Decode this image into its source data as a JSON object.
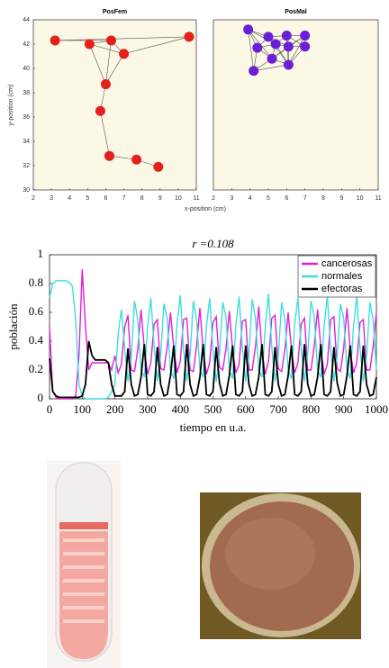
{
  "chart_data": [
    {
      "type": "scatter",
      "title": "PosFem",
      "xlabel": "x-position (cm)",
      "ylabel": "y-position (cm)",
      "color": "#e3201b",
      "x": [
        3.2,
        5.1,
        6.3,
        7.0,
        10.6,
        6.0,
        5.7,
        6.2,
        7.7,
        8.9
      ],
      "y": [
        42.3,
        42.0,
        42.3,
        41.2,
        42.6,
        38.7,
        36.5,
        32.8,
        32.5,
        31.9
      ],
      "edges": [
        [
          0,
          2
        ],
        [
          0,
          4
        ],
        [
          1,
          2
        ],
        [
          1,
          3
        ],
        [
          2,
          3
        ],
        [
          3,
          4
        ],
        [
          2,
          5
        ],
        [
          1,
          5
        ],
        [
          3,
          5
        ],
        [
          5,
          6
        ],
        [
          6,
          7
        ],
        [
          7,
          8
        ],
        [
          8,
          9
        ]
      ],
      "xlim": [
        2,
        11
      ],
      "xticks": [
        2,
        3,
        4,
        5,
        6,
        7,
        8,
        9,
        10,
        11
      ],
      "ylim": [
        30,
        44
      ],
      "yticks": [
        30,
        32,
        34,
        36,
        38,
        40,
        42,
        44
      ]
    },
    {
      "type": "scatter",
      "title": "PosMal",
      "color": "#6a1fd6",
      "x": [
        3.9,
        5.0,
        6.0,
        7.0,
        4.4,
        5.4,
        6.1,
        7.0,
        5.2,
        6.1,
        4.2
      ],
      "y": [
        43.2,
        42.6,
        42.7,
        42.7,
        41.7,
        42.0,
        41.8,
        41.8,
        40.8,
        40.3,
        39.8
      ],
      "edges": [
        [
          0,
          1
        ],
        [
          0,
          4
        ],
        [
          0,
          5
        ],
        [
          0,
          8
        ],
        [
          0,
          10
        ],
        [
          1,
          2
        ],
        [
          1,
          4
        ],
        [
          1,
          5
        ],
        [
          1,
          6
        ],
        [
          1,
          9
        ],
        [
          2,
          3
        ],
        [
          2,
          5
        ],
        [
          2,
          6
        ],
        [
          2,
          7
        ],
        [
          2,
          9
        ],
        [
          3,
          6
        ],
        [
          3,
          7
        ],
        [
          3,
          9
        ],
        [
          4,
          5
        ],
        [
          4,
          8
        ],
        [
          4,
          10
        ],
        [
          5,
          6
        ],
        [
          5,
          8
        ],
        [
          5,
          9
        ],
        [
          6,
          7
        ],
        [
          6,
          8
        ],
        [
          6,
          9
        ],
        [
          7,
          9
        ],
        [
          8,
          9
        ],
        [
          8,
          10
        ],
        [
          9,
          10
        ],
        [
          3,
          8
        ]
      ],
      "xlim": [
        2,
        11
      ],
      "xticks": [
        2,
        3,
        4,
        5,
        6,
        7,
        8,
        9,
        10,
        11
      ],
      "ylim": [
        30,
        44
      ]
    },
    {
      "type": "line",
      "title": "r =0.108",
      "xlabel": "tiempo en u.a.",
      "ylabel": "población",
      "x": [
        0,
        10,
        20,
        30,
        40,
        50,
        60,
        70,
        80,
        90,
        100,
        110,
        120,
        130,
        140,
        150,
        160,
        170,
        180,
        190,
        200,
        210,
        220,
        230,
        240,
        250,
        260,
        270,
        280,
        290,
        300,
        310,
        320,
        330,
        340,
        350,
        360,
        370,
        380,
        390,
        400,
        410,
        420,
        430,
        440,
        450,
        460,
        470,
        480,
        490,
        500,
        510,
        520,
        530,
        540,
        550,
        560,
        570,
        580,
        590,
        600,
        610,
        620,
        630,
        640,
        650,
        660,
        670,
        680,
        690,
        700,
        710,
        720,
        730,
        740,
        750,
        760,
        770,
        780,
        790,
        800,
        810,
        820,
        830,
        840,
        850,
        860,
        870,
        880,
        890,
        900,
        910,
        920,
        930,
        940,
        950,
        960,
        970,
        980,
        990,
        1000
      ],
      "series": [
        {
          "name": "cancerosas",
          "color": "#e020d8",
          "values": [
            0.5,
            0.05,
            0.01,
            0,
            0,
            0,
            0,
            0,
            0.02,
            0.3,
            0.9,
            0.5,
            0.2,
            0.25,
            0.25,
            0.25,
            0.25,
            0.25,
            0.25,
            0.2,
            0.3,
            0.18,
            0.24,
            0.5,
            0.58,
            0.2,
            0.19,
            0.34,
            0.62,
            0.35,
            0.17,
            0.25,
            0.52,
            0.55,
            0.21,
            0.2,
            0.36,
            0.6,
            0.36,
            0.18,
            0.26,
            0.55,
            0.56,
            0.2,
            0.19,
            0.37,
            0.63,
            0.34,
            0.17,
            0.25,
            0.53,
            0.57,
            0.22,
            0.2,
            0.35,
            0.61,
            0.35,
            0.18,
            0.24,
            0.54,
            0.55,
            0.2,
            0.2,
            0.36,
            0.64,
            0.33,
            0.17,
            0.26,
            0.56,
            0.58,
            0.21,
            0.19,
            0.34,
            0.6,
            0.35,
            0.18,
            0.25,
            0.52,
            0.56,
            0.2,
            0.2,
            0.37,
            0.62,
            0.36,
            0.17,
            0.24,
            0.55,
            0.57,
            0.21,
            0.19,
            0.35,
            0.63,
            0.34,
            0.18,
            0.25,
            0.53,
            0.55,
            0.2,
            0.2,
            0.36,
            0.6
          ]
        },
        {
          "name": "normales",
          "color": "#3fdede",
          "values": [
            0.7,
            0.8,
            0.82,
            0.82,
            0.82,
            0.82,
            0.81,
            0.78,
            0.55,
            0.1,
            0.02,
            0,
            0,
            0,
            0,
            0,
            0,
            0,
            0.01,
            0.05,
            0.1,
            0.45,
            0.62,
            0.35,
            0.12,
            0.28,
            0.68,
            0.55,
            0.2,
            0.15,
            0.5,
            0.7,
            0.36,
            0.12,
            0.3,
            0.66,
            0.56,
            0.2,
            0.14,
            0.52,
            0.72,
            0.35,
            0.12,
            0.3,
            0.68,
            0.55,
            0.2,
            0.15,
            0.5,
            0.7,
            0.34,
            0.12,
            0.31,
            0.67,
            0.57,
            0.2,
            0.14,
            0.51,
            0.71,
            0.35,
            0.12,
            0.3,
            0.69,
            0.56,
            0.2,
            0.15,
            0.5,
            0.73,
            0.36,
            0.12,
            0.3,
            0.67,
            0.55,
            0.2,
            0.14,
            0.52,
            0.7,
            0.35,
            0.12,
            0.31,
            0.68,
            0.57,
            0.2,
            0.15,
            0.5,
            0.72,
            0.34,
            0.12,
            0.3,
            0.66,
            0.56,
            0.2,
            0.14,
            0.51,
            0.71,
            0.35,
            0.12,
            0.3,
            0.67,
            0.55,
            0.2
          ]
        },
        {
          "name": "efectoras",
          "color": "#000000",
          "values": [
            0.28,
            0.05,
            0.02,
            0.01,
            0.01,
            0.01,
            0.01,
            0.01,
            0.01,
            0.01,
            0.02,
            0.1,
            0.4,
            0.3,
            0.27,
            0.27,
            0.27,
            0.27,
            0.25,
            0.1,
            0.02,
            0.02,
            0.02,
            0.05,
            0.35,
            0.1,
            0.02,
            0.03,
            0.15,
            0.38,
            0.03,
            0.02,
            0.05,
            0.36,
            0.1,
            0.02,
            0.03,
            0.16,
            0.37,
            0.03,
            0.02,
            0.05,
            0.38,
            0.1,
            0.02,
            0.03,
            0.15,
            0.38,
            0.03,
            0.02,
            0.05,
            0.36,
            0.11,
            0.02,
            0.03,
            0.16,
            0.37,
            0.03,
            0.02,
            0.05,
            0.37,
            0.1,
            0.02,
            0.03,
            0.15,
            0.38,
            0.03,
            0.02,
            0.05,
            0.36,
            0.1,
            0.02,
            0.03,
            0.16,
            0.37,
            0.03,
            0.02,
            0.05,
            0.38,
            0.1,
            0.02,
            0.03,
            0.15,
            0.38,
            0.03,
            0.02,
            0.05,
            0.36,
            0.11,
            0.02,
            0.03,
            0.16,
            0.37,
            0.03,
            0.02,
            0.05,
            0.37,
            0.1,
            0.02,
            0.03,
            0.15
          ]
        }
      ],
      "xlim": [
        0,
        1000
      ],
      "xticks": [
        0,
        100,
        200,
        300,
        400,
        500,
        600,
        700,
        800,
        900,
        1000
      ],
      "ylim": [
        0,
        1
      ],
      "yticks": [
        0,
        0.2,
        0.4,
        0.6,
        0.8,
        1
      ],
      "legend": "upper right"
    }
  ]
}
